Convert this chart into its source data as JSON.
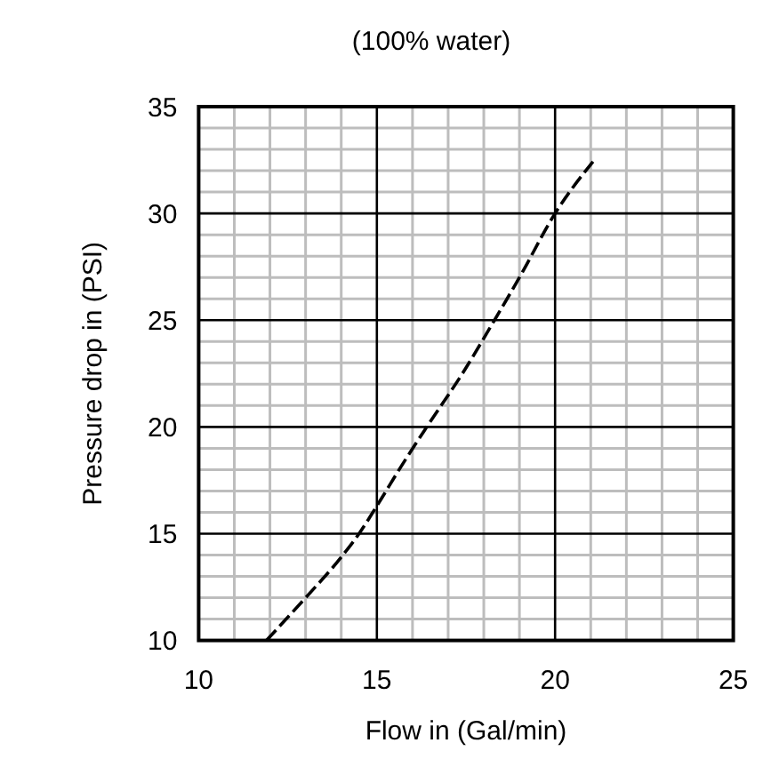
{
  "chart_data": {
    "type": "line",
    "title": "(100% water)",
    "xlabel": "Flow in (Gal/min)",
    "ylabel": "Pressure drop in (PSI)",
    "series": [
      {
        "color": "#000000",
        "x": [
          11.9,
          13.0,
          14.0,
          14.5,
          15.0,
          15.7,
          16.4,
          17.4,
          18.3,
          19.0,
          20.0,
          21.1
        ],
        "values": [
          10,
          12.0,
          13.9,
          15.0,
          16.3,
          18.2,
          20.0,
          22.5,
          25,
          27.0,
          30,
          32.5
        ]
      }
    ],
    "xlim": [
      10,
      25
    ],
    "ylim": [
      10,
      35
    ],
    "xticks": [
      10,
      {
        "value": 11,
        "label": null
      },
      {
        "value": 12,
        "label": null
      },
      {
        "value": 13,
        "label": null
      },
      {
        "value": 14,
        "label": null
      },
      15,
      {
        "value": 16,
        "label": null
      },
      {
        "value": 17,
        "label": null
      },
      {
        "value": 18,
        "label": null
      },
      {
        "value": 19,
        "label": null
      },
      20,
      {
        "value": 21,
        "label": null
      },
      {
        "value": 22,
        "label": null
      },
      {
        "value": 23,
        "label": null
      },
      {
        "value": 24,
        "label": null
      },
      25
    ],
    "yticks": [
      10,
      {
        "value": 11,
        "label": null
      },
      {
        "value": 12,
        "label": null
      },
      {
        "value": 13,
        "label": null
      },
      {
        "value": 14,
        "label": null
      },
      15,
      {
        "value": 16,
        "label": null
      },
      {
        "value": 17,
        "label": null
      },
      {
        "value": 18,
        "label": null
      },
      {
        "value": 19,
        "label": null
      },
      20,
      {
        "value": 21,
        "label": null
      },
      {
        "value": 22,
        "label": null
      },
      {
        "value": 23,
        "label": null
      },
      {
        "value": 24,
        "label": null
      },
      25,
      {
        "value": 26,
        "label": null
      },
      {
        "value": 27,
        "label": null
      },
      {
        "value": 28,
        "label": null
      },
      {
        "value": 29,
        "label": null
      },
      30,
      {
        "value": 31,
        "label": null
      },
      {
        "value": 32,
        "label": null
      },
      {
        "value": 33,
        "label": null
      },
      {
        "value": 34,
        "label": null
      },
      35
    ],
    "grid": true,
    "line_style": "dashed"
  }
}
